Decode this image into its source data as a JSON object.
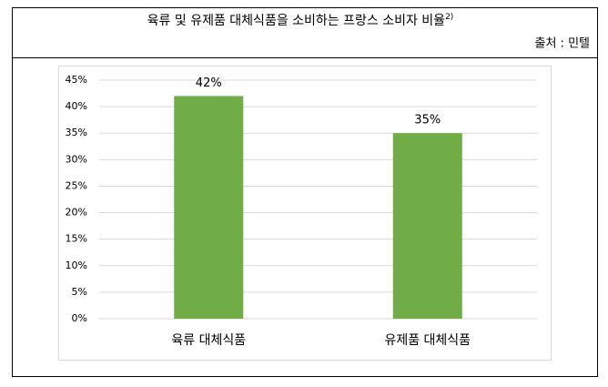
{
  "chart_data": {
    "type": "bar",
    "title": "육류 및 유제품 대체식품을 소비하는 프랑스 소비자 비율",
    "title_note": "2)",
    "source": "출처 : 민텔",
    "categories": [
      "육류 대체식품",
      "유제품 대체식품"
    ],
    "values": [
      42,
      35
    ],
    "value_labels": [
      "42%",
      "35%"
    ],
    "color": "#70ad47",
    "ylim": [
      0,
      45
    ],
    "yticks": [
      {
        "value": 0,
        "label": "0%"
      },
      {
        "value": 5,
        "label": "5%"
      },
      {
        "value": 10,
        "label": "10%"
      },
      {
        "value": 15,
        "label": "15%"
      },
      {
        "value": 20,
        "label": "20%"
      },
      {
        "value": 25,
        "label": "25%"
      },
      {
        "value": 30,
        "label": "30%"
      },
      {
        "value": 35,
        "label": "35%"
      },
      {
        "value": 40,
        "label": "40%"
      },
      {
        "value": 45,
        "label": "45%"
      }
    ],
    "grid": true
  }
}
